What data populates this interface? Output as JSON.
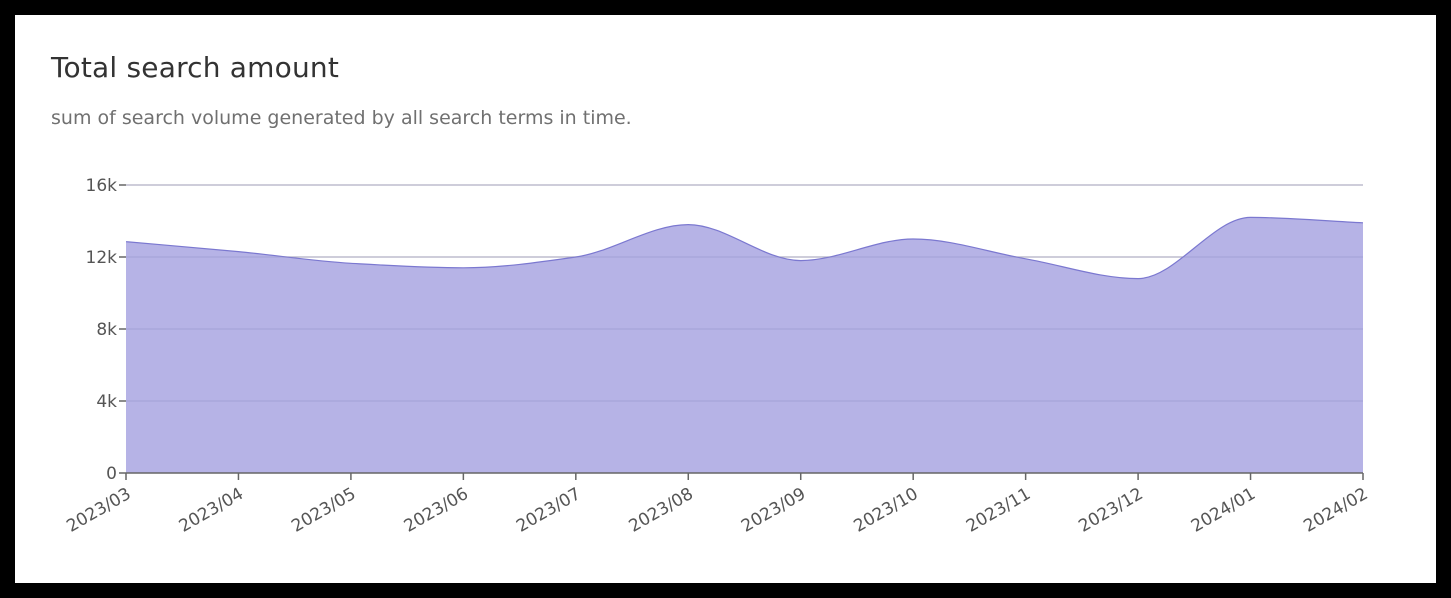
{
  "card": {
    "title": "Total search amount",
    "subtitle": "sum of search volume generated by all search terms in time."
  },
  "colors": {
    "area_fill": "#b6b3e6",
    "area_stroke": "#7b78d0",
    "grid": "#c8c8c8",
    "axis": "#666666",
    "text": "#555555"
  },
  "chart_data": {
    "type": "area",
    "title": "Total search amount",
    "subtitle": "sum of search volume generated by all search terms in time.",
    "xlabel": "",
    "ylabel": "",
    "categories": [
      "2023/03",
      "2023/04",
      "2023/05",
      "2023/06",
      "2023/07",
      "2023/08",
      "2023/09",
      "2023/10",
      "2023/11",
      "2023/12",
      "2024/01",
      "2024/02"
    ],
    "series": [
      {
        "name": "Total search amount",
        "values": [
          12850,
          12300,
          11650,
          11400,
          12000,
          13800,
          11800,
          13000,
          11900,
          10800,
          14200,
          13900
        ]
      }
    ],
    "ylim": [
      0,
      16000
    ],
    "yticks": [
      0,
      4000,
      8000,
      12000,
      16000
    ],
    "ytick_labels": [
      "0",
      "4k",
      "8k",
      "12k",
      "16k"
    ],
    "grid": true,
    "legend": "none",
    "curve": "smooth (monotone)",
    "x_label_rotation": -30
  }
}
